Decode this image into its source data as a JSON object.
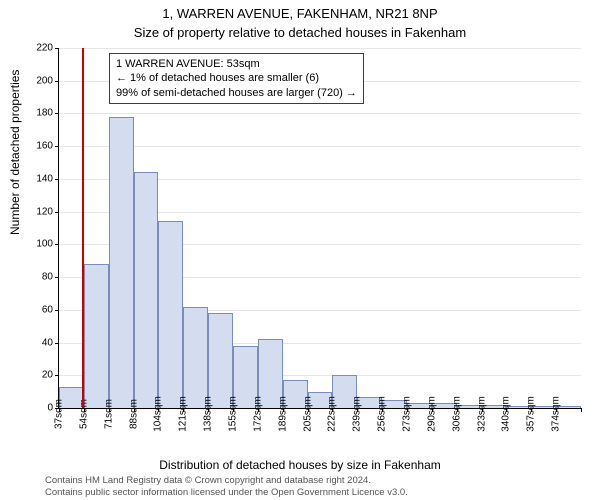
{
  "title_line1": "1, WARREN AVENUE, FAKENHAM, NR21 8NP",
  "title_line2": "Size of property relative to detached houses in Fakenham",
  "yaxis_label": "Number of detached properties",
  "xaxis_label": "Distribution of detached houses by size in Fakenham",
  "footnote1": "Contains HM Land Registry data © Crown copyright and database right 2024.",
  "footnote2": "Contains public sector information licensed under the Open Government Licence v3.0.",
  "chart": {
    "type": "histogram",
    "background_color": "#ffffff",
    "grid_color": "#e6e6e6",
    "bar_fill": "#d4dcef",
    "bar_stroke": "#7a8db8",
    "marker_color": "#cc0000",
    "annot_border": "#cc0000",
    "ylim": [
      0,
      220
    ],
    "ytick_step": 20,
    "yticks": [
      0,
      20,
      40,
      60,
      80,
      100,
      120,
      140,
      160,
      180,
      200,
      220
    ],
    "x_start": 37,
    "x_bin_width": 17,
    "x_bin_count": 21,
    "x_labels": [
      "37sqm",
      "54sqm",
      "71sqm",
      "88sqm",
      "104sqm",
      "121sqm",
      "138sqm",
      "155sqm",
      "172sqm",
      "189sqm",
      "205sqm",
      "222sqm",
      "239sqm",
      "256sqm",
      "273sqm",
      "290sqm",
      "306sqm",
      "323sqm",
      "340sqm",
      "357sqm",
      "374sqm"
    ],
    "values": [
      13,
      88,
      178,
      144,
      114,
      62,
      58,
      38,
      42,
      17,
      10,
      20,
      7,
      5,
      3,
      3,
      2,
      2,
      1,
      1,
      1
    ],
    "marker_x_sqm": 53,
    "annotation": {
      "line1": "1 WARREN AVENUE: 53sqm",
      "line2": "← 1% of detached houses are smaller (6)",
      "line3": "99% of semi-detached houses are larger (720) →"
    }
  }
}
